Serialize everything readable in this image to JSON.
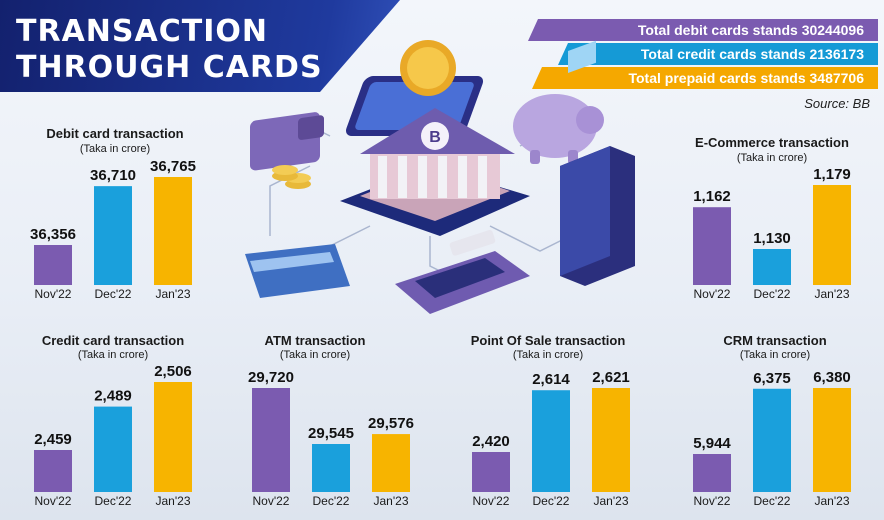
{
  "header": {
    "title_line1": "TRANSACTION",
    "title_line2": "THROUGH CARDS"
  },
  "badges": [
    {
      "text": "Total debit cards stands 30244096",
      "color": "#7b5bb0"
    },
    {
      "text": "Total credit cards stands 2136173",
      "color": "#159ad6"
    },
    {
      "text": "Total prepaid cards stands 3487706",
      "color": "#f5a800"
    }
  ],
  "source": "Source: BB",
  "colors": {
    "bar1": "#7b5bb0",
    "bar2": "#1aa0dc",
    "bar3": "#f7b400"
  },
  "chart_data": [
    {
      "type": "bar",
      "title": "Debit card transaction",
      "subtitle": "(Taka in crore)",
      "categories": [
        "Nov'22",
        "Dec'22",
        "Jan'23"
      ],
      "values": [
        36356,
        36710,
        36765
      ],
      "labels": [
        "36,356",
        "36,710",
        "36,765"
      ]
    },
    {
      "type": "bar",
      "title": "E-Commerce transaction",
      "subtitle": "(Taka in crore)",
      "categories": [
        "Nov'22",
        "Dec'22",
        "Jan'23"
      ],
      "values": [
        1162,
        1130,
        1179
      ],
      "labels": [
        "1,162",
        "1,130",
        "1,179"
      ]
    },
    {
      "type": "bar",
      "title": "Credit card transaction",
      "subtitle": "(Taka in crore)",
      "categories": [
        "Nov'22",
        "Dec'22",
        "Jan'23"
      ],
      "values": [
        2459,
        2489,
        2506
      ],
      "labels": [
        "2,459",
        "2,489",
        "2,506"
      ]
    },
    {
      "type": "bar",
      "title": "ATM transaction",
      "subtitle": "(Taka in crore)",
      "categories": [
        "Nov'22",
        "Dec'22",
        "Jan'23"
      ],
      "values": [
        29720,
        29545,
        29576
      ],
      "labels": [
        "29,720",
        "29,545",
        "29,576"
      ]
    },
    {
      "type": "bar",
      "title": "Point Of Sale transaction",
      "subtitle": "(Taka in crore)",
      "categories": [
        "Nov'22",
        "Dec'22",
        "Jan'23"
      ],
      "values": [
        2420,
        2614,
        2621
      ],
      "labels": [
        "2,420",
        "2,614",
        "2,621"
      ]
    },
    {
      "type": "bar",
      "title": "CRM transaction",
      "subtitle": "(Taka in crore)",
      "categories": [
        "Nov'22",
        "Dec'22",
        "Jan'23"
      ],
      "values": [
        5944,
        6375,
        6380
      ],
      "labels": [
        "5,944",
        "6,375",
        "6,380"
      ]
    }
  ]
}
